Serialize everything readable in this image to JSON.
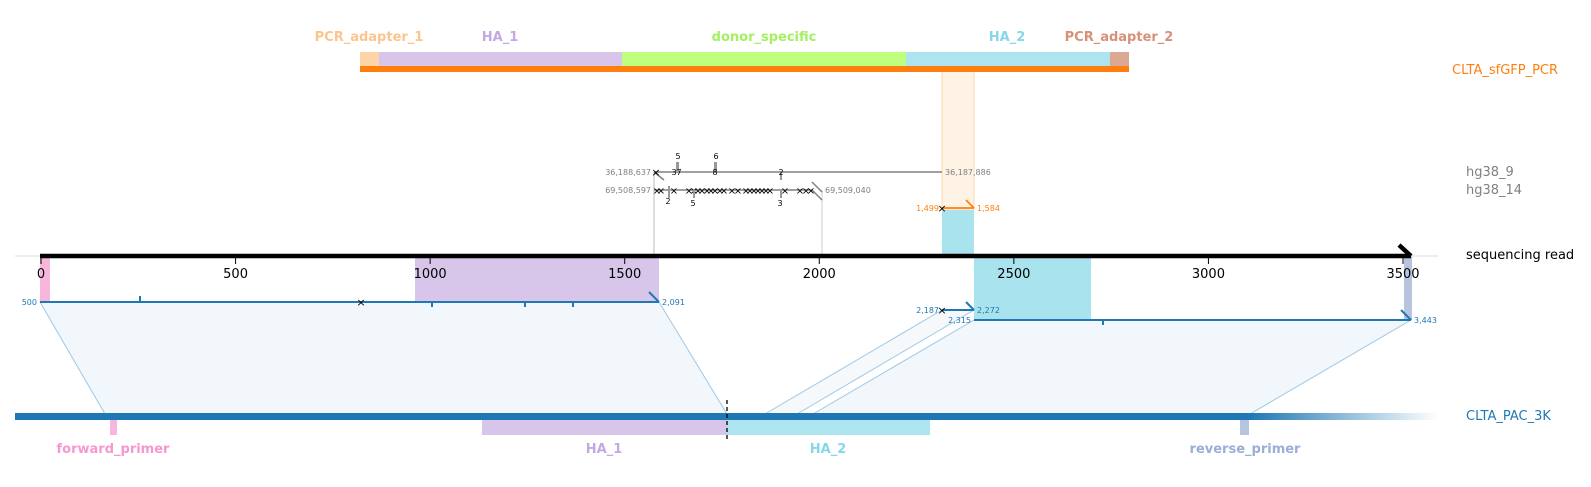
{
  "axis": {
    "name": "sequencing read",
    "ticks": [
      {
        "value": 0,
        "label": "0"
      },
      {
        "value": 500,
        "label": "500"
      },
      {
        "value": 1000,
        "label": "1000"
      },
      {
        "value": 1500,
        "label": "1500"
      },
      {
        "value": 2000,
        "label": "2000"
      },
      {
        "value": 2500,
        "label": "2500"
      },
      {
        "value": 3000,
        "label": "3000"
      },
      {
        "value": 3500,
        "label": "3500"
      }
    ]
  },
  "track_labels": {
    "donor": "CLTA_sfGFP_PCR",
    "hg38_9": "hg38_9",
    "hg38_14": "hg38_14",
    "read": "sequencing read",
    "target": "CLTA_PAC_3K"
  },
  "donor_features": [
    {
      "name": "PCR_adapter_1",
      "color": "#fdd4a8",
      "text_color": "#fdc48e"
    },
    {
      "name": "HA_1",
      "color": "#d8c6ea",
      "text_color": "#c3a8e3"
    },
    {
      "name": "donor_specific",
      "color": "#bfff7f",
      "text_color": "#a4f062"
    },
    {
      "name": "HA_2",
      "color": "#ade4f0",
      "text_color": "#86d7ea"
    },
    {
      "name": "PCR_adapter_2",
      "color": "#dba894",
      "text_color": "#d7917a"
    }
  ],
  "target_features": [
    {
      "name": "forward_primer",
      "color": "#f7b6dc",
      "text_color": "#f797cf"
    },
    {
      "name": "HA_1",
      "color": "#d8c6ea",
      "text_color": "#c3a8e3"
    },
    {
      "name": "HA_2",
      "color": "#ade4f0",
      "text_color": "#86d7ea"
    },
    {
      "name": "reverse_primer",
      "color": "#b7c4de",
      "text_color": "#9aaed6"
    }
  ],
  "alignment_labels": {
    "target_1_start": "500",
    "target_1_end": "2,091",
    "target_2_start": "2,187",
    "target_2_end": "2,272",
    "target_3_start": "2,315",
    "target_3_end": "3,443",
    "donor_start": "1,499",
    "donor_end": "1,584",
    "hg38_9_start": "36,188,637",
    "hg38_9_end": "36,187,886",
    "hg38_14_start": "69,508,597",
    "hg38_14_end": "69,509,040"
  },
  "indel_labels": [
    {
      "text": "5"
    },
    {
      "text": "6"
    },
    {
      "text": "3"
    },
    {
      "text": "7"
    },
    {
      "text": "8"
    },
    {
      "text": "2"
    },
    {
      "text": "2"
    },
    {
      "text": "5"
    },
    {
      "text": "3"
    }
  ],
  "colors": {
    "target_blue": "#1f78b4",
    "donor_orange": "#ff7f0e",
    "genome_gray": "#808080",
    "black": "#000000"
  }
}
